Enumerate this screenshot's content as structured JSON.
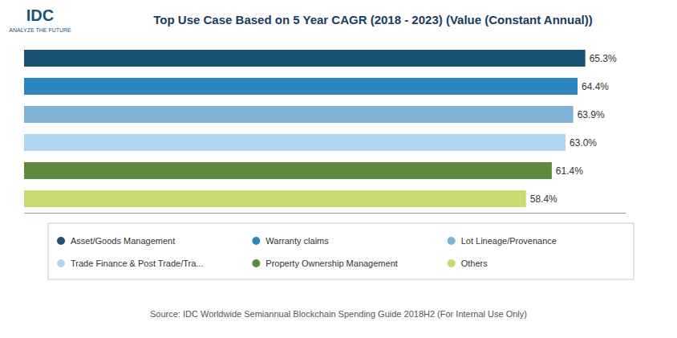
{
  "chart_data": {
    "type": "bar",
    "orientation": "horizontal",
    "title": "Top Use Case Based on 5 Year CAGR (2018 - 2023) (Value (Constant Annual))",
    "categories": [
      "Asset/Goods Management",
      "Warranty claims",
      "Lot Lineage/Provenance",
      "Trade Finance & Post Trade/Tra...",
      "Property Ownership Management",
      "Others"
    ],
    "values": [
      65.3,
      64.4,
      63.9,
      63.0,
      61.4,
      58.4
    ],
    "value_labels": [
      "65.3%",
      "64.4%",
      "63.9%",
      "63.0%",
      "61.4%",
      "58.4%"
    ],
    "colors": [
      "#1a5276",
      "#2e86c1",
      "#7fb3d3",
      "#aed6f1",
      "#5d8a3c",
      "#c8d96f"
    ],
    "xlim": [
      0,
      70
    ],
    "data_labels": true,
    "tick_labels": false,
    "legend": "bottom",
    "annotations": [
      "Source: IDC Worldwide Semiannual Blockchain Spending Guide 2018H2 (For Internal Use Only)",
      "IDC",
      "ANALYZE THE FUTURE"
    ]
  }
}
